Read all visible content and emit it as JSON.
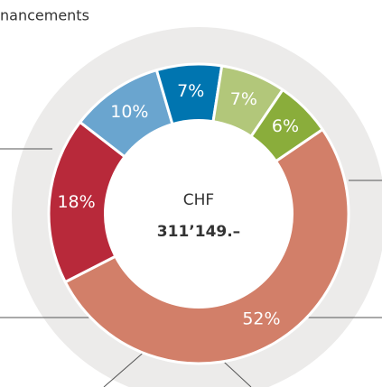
{
  "chart_data": {
    "type": "donut",
    "title": "nancements",
    "center_label": "CHF",
    "center_value": "311’149.–",
    "categories": [
      null,
      null,
      null,
      null,
      null,
      null
    ],
    "values": [
      52,
      18,
      10,
      7,
      7,
      6
    ],
    "value_labels": [
      "52%",
      "18%",
      "10%",
      "7%",
      "7%",
      "6%"
    ],
    "colors": [
      "#d27f69",
      "#b8293a",
      "#6aa5cf",
      "#0075b0",
      "#b2c77a",
      "#8aad3b"
    ]
  }
}
